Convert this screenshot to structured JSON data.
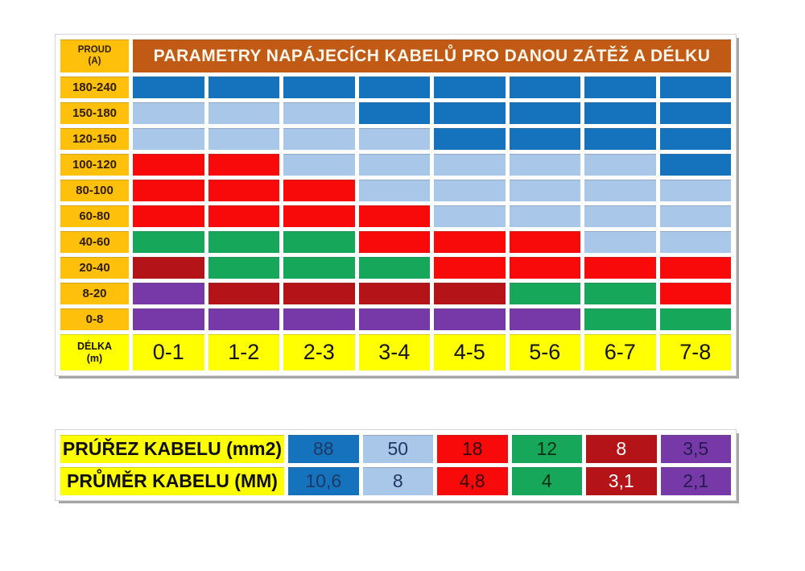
{
  "title": "PARAMETRY NAPÁJECÍCH KABELŮ PRO DANOU ZÁTĚŽ A DÉLKU",
  "axes": {
    "row_header_line1": "PROUD",
    "row_header_line2": "(A)",
    "col_header_line1": "DÉLKA",
    "col_header_line2": "(m)"
  },
  "chart_data": {
    "type": "heatmap",
    "rows": [
      "180-240",
      "150-180",
      "120-150",
      "100-120",
      "80-100",
      "60-80",
      "40-60",
      "20-40",
      "8-20",
      "0-8"
    ],
    "columns": [
      "0-1",
      "1-2",
      "2-3",
      "3-4",
      "4-5",
      "5-6",
      "6-7",
      "7-8"
    ],
    "cells": [
      [
        "blue",
        "blue",
        "blue",
        "blue",
        "blue",
        "blue",
        "blue",
        "blue"
      ],
      [
        "lightblue",
        "lightblue",
        "lightblue",
        "blue",
        "blue",
        "blue",
        "blue",
        "blue"
      ],
      [
        "lightblue",
        "lightblue",
        "lightblue",
        "lightblue",
        "blue",
        "blue",
        "blue",
        "blue"
      ],
      [
        "red",
        "red",
        "lightblue",
        "lightblue",
        "lightblue",
        "lightblue",
        "lightblue",
        "blue"
      ],
      [
        "red",
        "red",
        "red",
        "lightblue",
        "lightblue",
        "lightblue",
        "lightblue",
        "lightblue"
      ],
      [
        "red",
        "red",
        "red",
        "red",
        "lightblue",
        "lightblue",
        "lightblue",
        "lightblue"
      ],
      [
        "green",
        "green",
        "green",
        "red",
        "red",
        "red",
        "lightblue",
        "lightblue"
      ],
      [
        "darkred",
        "green",
        "green",
        "green",
        "red",
        "red",
        "red",
        "red"
      ],
      [
        "purple",
        "darkred",
        "darkred",
        "darkred",
        "darkred",
        "green",
        "green",
        "red"
      ],
      [
        "purple",
        "purple",
        "purple",
        "purple",
        "purple",
        "purple",
        "green",
        "green"
      ]
    ],
    "legend": {
      "row1_label": "PRÚŘEZ KABELU (mm2)",
      "row2_label": "PRŮMĚR KABELU (MM)",
      "entries": [
        {
          "color": "blue",
          "cross_section_mm2": "88",
          "diameter_mm": "10,6"
        },
        {
          "color": "lightblue",
          "cross_section_mm2": "50",
          "diameter_mm": "8"
        },
        {
          "color": "red",
          "cross_section_mm2": "18",
          "diameter_mm": "4,8"
        },
        {
          "color": "green",
          "cross_section_mm2": "12",
          "diameter_mm": "4"
        },
        {
          "color": "darkred",
          "cross_section_mm2": "8",
          "diameter_mm": "3,1"
        },
        {
          "color": "purple",
          "cross_section_mm2": "3,5",
          "diameter_mm": "2,1"
        }
      ]
    }
  },
  "colors": {
    "blue": "#1573be",
    "lightblue": "#a9c7e8",
    "red": "#f90a0a",
    "green": "#17a75b",
    "darkred": "#b41318",
    "purple": "#7839a8",
    "gold": "#ffc00c",
    "yellow": "#ffff00",
    "title_bg": "#c05a15"
  },
  "text_colors": {
    "blue": "#1f3864",
    "lightblue": "#1f3864",
    "red": "#330809",
    "green": "#0f2f14",
    "darkred": "#ffffff",
    "purple": "#251a52"
  }
}
